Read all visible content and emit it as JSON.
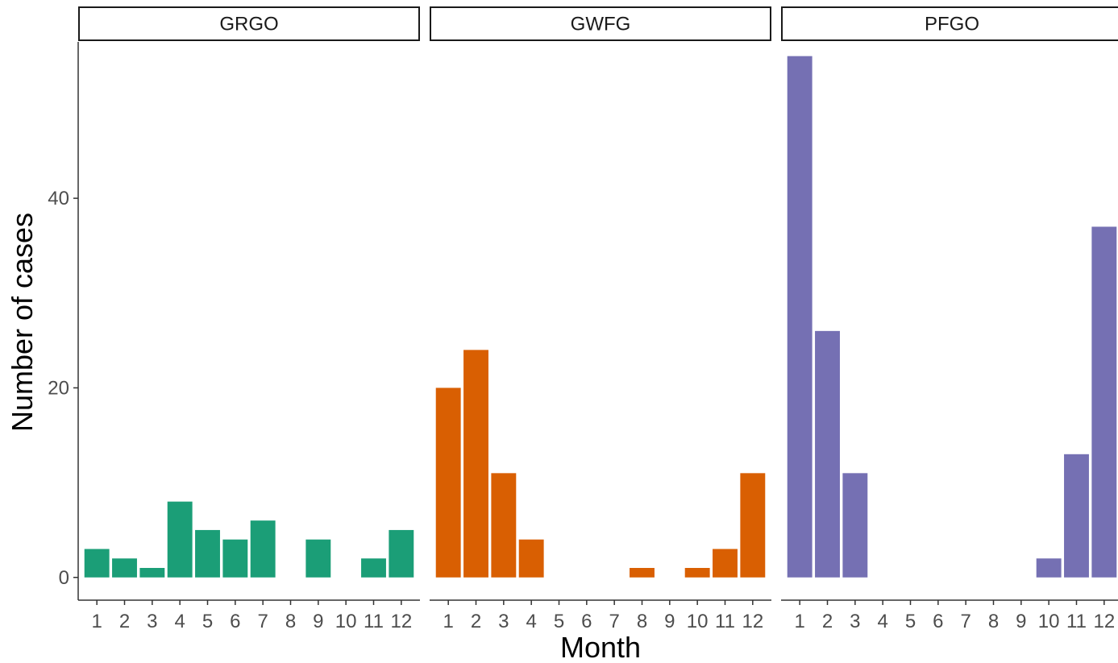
{
  "chart_data": {
    "type": "bar",
    "xlabel": "Month",
    "ylabel": "Number of cases",
    "ylim": [
      -2.4,
      56.5
    ],
    "yticks": [
      0,
      20,
      40
    ],
    "categories": [
      1,
      2,
      3,
      4,
      5,
      6,
      7,
      8,
      9,
      10,
      11,
      12
    ],
    "grid": false,
    "panels": [
      {
        "name": "GRGO",
        "color": "#1b9e77",
        "values": [
          3,
          2,
          1,
          8,
          5,
          4,
          6,
          0,
          4,
          0,
          2,
          5
        ]
      },
      {
        "name": "GWFG",
        "color": "#d95f02",
        "values": [
          20,
          24,
          11,
          4,
          0,
          0,
          0,
          1,
          0,
          1,
          3,
          11
        ]
      },
      {
        "name": "PFGO",
        "color": "#7570b3",
        "values": [
          55,
          26,
          11,
          0,
          0,
          0,
          0,
          0,
          0,
          2,
          13,
          37
        ]
      }
    ]
  }
}
